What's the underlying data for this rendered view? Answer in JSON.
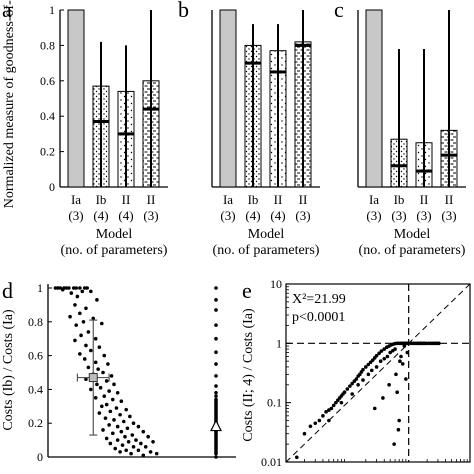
{
  "chart_data": [
    {
      "panel": "a",
      "type": "bar",
      "ylabel": "Normalized measure of goodness-of-fit",
      "ylim": [
        0,
        1
      ],
      "yticks": [
        "0",
        "0.2",
        "0.4",
        "0.6",
        "0.8",
        "1"
      ],
      "categories": [
        "Ia",
        "Ib",
        "II",
        "II"
      ],
      "params": [
        "(3)",
        "(4)",
        "(4)",
        "(3)"
      ],
      "xlabel": [
        "Model",
        "(no. of parameters)"
      ],
      "values": [
        1.0,
        0.57,
        0.54,
        0.6
      ],
      "medians": [
        null,
        0.37,
        0.3,
        0.44
      ],
      "whisker_low": [
        null,
        0.0,
        0.0,
        0.0
      ],
      "whisker_high": [
        null,
        0.82,
        0.8,
        1.0
      ],
      "patterns": [
        "gray",
        "dots",
        "sparse",
        "dashes"
      ]
    },
    {
      "panel": "b",
      "type": "bar",
      "ylim": [
        0,
        1
      ],
      "categories": [
        "Ia",
        "Ib",
        "II",
        "II"
      ],
      "params": [
        "(3)",
        "(4)",
        "(4)",
        "(3)"
      ],
      "xlabel": [
        "Model",
        "(no. of parameters)"
      ],
      "values": [
        1.0,
        0.8,
        0.77,
        0.82
      ],
      "medians": [
        null,
        0.7,
        0.65,
        0.8
      ],
      "whisker_low": [
        null,
        0.0,
        0.0,
        0.0
      ],
      "whisker_high": [
        null,
        0.92,
        0.92,
        1.0
      ],
      "patterns": [
        "gray",
        "dots",
        "sparse",
        "dashes"
      ]
    },
    {
      "panel": "c",
      "type": "bar",
      "ylim": [
        0,
        1
      ],
      "categories": [
        "Ia",
        "Ib",
        "II",
        "II"
      ],
      "params": [
        "(3)",
        "(3)",
        "(3)",
        "(3)"
      ],
      "xlabel": [
        "Model",
        "(no. of parameters)"
      ],
      "values": [
        1.0,
        0.27,
        0.25,
        0.32
      ],
      "medians": [
        null,
        0.12,
        0.09,
        0.18
      ],
      "whisker_low": [
        null,
        0.0,
        0.0,
        0.0
      ],
      "whisker_high": [
        null,
        0.78,
        0.78,
        1.0
      ],
      "patterns": [
        "gray",
        "dots",
        "sparse",
        "dashes"
      ]
    },
    {
      "panel": "d",
      "type": "scatter",
      "ylabel": "Costs (Ib) / Costs (Ia)",
      "ylim": [
        0,
        1
      ],
      "yticks": [
        "0",
        "0.2",
        "0.4",
        "0.6",
        "0.8",
        "1"
      ],
      "points": [
        [
          0.02,
          1
        ],
        [
          0.04,
          1
        ],
        [
          0.06,
          1
        ],
        [
          0.09,
          1
        ],
        [
          0.11,
          1
        ],
        [
          0.13,
          1
        ],
        [
          0.17,
          1
        ],
        [
          0.19,
          1
        ],
        [
          0.22,
          1
        ],
        [
          0.26,
          1
        ],
        [
          0.28,
          1
        ],
        [
          0.08,
          0.99
        ],
        [
          0.24,
          0.98
        ],
        [
          0.15,
          0.97
        ],
        [
          0.31,
          0.98
        ],
        [
          0.2,
          0.95
        ],
        [
          0.36,
          0.93
        ],
        [
          0.18,
          0.9
        ],
        [
          0.27,
          0.88
        ],
        [
          0.22,
          0.85
        ],
        [
          0.14,
          0.83
        ],
        [
          0.33,
          0.82
        ],
        [
          0.25,
          0.8
        ],
        [
          0.19,
          0.78
        ],
        [
          0.4,
          0.79
        ],
        [
          0.29,
          0.74
        ],
        [
          0.23,
          0.72
        ],
        [
          0.35,
          0.7
        ],
        [
          0.18,
          0.69
        ],
        [
          0.27,
          0.66
        ],
        [
          0.38,
          0.65
        ],
        [
          0.31,
          0.63
        ],
        [
          0.22,
          0.61
        ],
        [
          0.42,
          0.6
        ],
        [
          0.26,
          0.58
        ],
        [
          0.35,
          0.56
        ],
        [
          0.45,
          0.55
        ],
        [
          0.29,
          0.53
        ],
        [
          0.37,
          0.52
        ],
        [
          0.41,
          0.5
        ],
        [
          0.33,
          0.49
        ],
        [
          0.48,
          0.48
        ],
        [
          0.27,
          0.46
        ],
        [
          0.44,
          0.45
        ],
        [
          0.36,
          0.43
        ],
        [
          0.5,
          0.43
        ],
        [
          0.39,
          0.41
        ],
        [
          0.31,
          0.4
        ],
        [
          0.46,
          0.39
        ],
        [
          0.53,
          0.38
        ],
        [
          0.42,
          0.36
        ],
        [
          0.35,
          0.35
        ],
        [
          0.49,
          0.34
        ],
        [
          0.56,
          0.33
        ],
        [
          0.44,
          0.31
        ],
        [
          0.4,
          0.3
        ],
        [
          0.52,
          0.29
        ],
        [
          0.6,
          0.28
        ],
        [
          0.47,
          0.27
        ],
        [
          0.38,
          0.26
        ],
        [
          0.55,
          0.25
        ],
        [
          0.63,
          0.24
        ],
        [
          0.43,
          0.23
        ],
        [
          0.5,
          0.22
        ],
        [
          0.58,
          0.21
        ],
        [
          0.66,
          0.2
        ],
        [
          0.46,
          0.19
        ],
        [
          0.53,
          0.18
        ],
        [
          0.7,
          0.18
        ],
        [
          0.61,
          0.17
        ],
        [
          0.41,
          0.16
        ],
        [
          0.56,
          0.15
        ],
        [
          0.74,
          0.15
        ],
        [
          0.49,
          0.14
        ],
        [
          0.65,
          0.13
        ],
        [
          0.59,
          0.12
        ],
        [
          0.78,
          0.12
        ],
        [
          0.44,
          0.11
        ],
        [
          0.68,
          0.1
        ],
        [
          0.53,
          0.1
        ],
        [
          0.62,
          0.09
        ],
        [
          0.82,
          0.09
        ],
        [
          0.72,
          0.08
        ],
        [
          0.47,
          0.08
        ],
        [
          0.57,
          0.07
        ],
        [
          0.66,
          0.06
        ],
        [
          0.76,
          0.06
        ],
        [
          0.51,
          0.05
        ],
        [
          0.6,
          0.04
        ],
        [
          0.7,
          0.04
        ],
        [
          0.8,
          0.03
        ],
        [
          0.55,
          0.03
        ],
        [
          0.64,
          0.02
        ],
        [
          0.74,
          0.01
        ],
        [
          0.85,
          0.02
        ]
      ],
      "mean_point": {
        "x": 0.33,
        "y": 0.47,
        "yerr": [
          0.13,
          0.81
        ],
        "xerr": [
          0.2,
          0.46
        ]
      },
      "column_points": [
        0.0,
        0.02,
        0.03,
        0.04,
        0.05,
        0.06,
        0.07,
        0.08,
        0.09,
        0.1,
        0.11,
        0.12,
        0.13,
        0.14,
        0.15,
        0.16,
        0.17,
        0.18,
        0.19,
        0.2,
        0.21,
        0.22,
        0.23,
        0.24,
        0.25,
        0.26,
        0.27,
        0.28,
        0.29,
        0.3,
        0.31,
        0.32,
        0.33,
        0.34,
        0.36,
        0.38,
        0.42,
        0.48,
        0.55,
        0.62,
        0.7,
        0.78,
        0.87,
        0.93,
        1.0
      ],
      "column_marker": 0.18
    },
    {
      "panel": "e",
      "type": "scatter",
      "ylabel": "Costs (II; 4) / Costs (Ia)",
      "yscale": "log",
      "ylim": [
        0.01,
        10
      ],
      "yticks": [
        "10",
        "1",
        "0.1",
        "0.01"
      ],
      "annotations": [
        "X²=21.99",
        "p<0.0001"
      ],
      "points": [
        [
          0.015,
          0.012
        ],
        [
          0.02,
          0.03
        ],
        [
          0.025,
          0.04
        ],
        [
          0.03,
          0.045
        ],
        [
          0.035,
          0.05
        ],
        [
          0.04,
          0.06
        ],
        [
          0.045,
          0.07
        ],
        [
          0.05,
          0.075
        ],
        [
          0.055,
          0.08
        ],
        [
          0.06,
          0.09
        ],
        [
          0.065,
          0.1
        ],
        [
          0.07,
          0.11
        ],
        [
          0.075,
          0.12
        ],
        [
          0.08,
          0.13
        ],
        [
          0.085,
          0.14
        ],
        [
          0.09,
          0.15
        ],
        [
          0.1,
          0.17
        ],
        [
          0.11,
          0.19
        ],
        [
          0.12,
          0.21
        ],
        [
          0.13,
          0.23
        ],
        [
          0.14,
          0.25
        ],
        [
          0.15,
          0.28
        ],
        [
          0.16,
          0.3
        ],
        [
          0.17,
          0.33
        ],
        [
          0.18,
          0.36
        ],
        [
          0.2,
          0.4
        ],
        [
          0.22,
          0.44
        ],
        [
          0.24,
          0.48
        ],
        [
          0.26,
          0.52
        ],
        [
          0.28,
          0.57
        ],
        [
          0.3,
          0.62
        ],
        [
          0.33,
          0.68
        ],
        [
          0.36,
          0.74
        ],
        [
          0.4,
          0.8
        ],
        [
          0.44,
          0.86
        ],
        [
          0.48,
          0.9
        ],
        [
          0.52,
          0.94
        ],
        [
          0.56,
          0.97
        ],
        [
          0.6,
          0.99
        ],
        [
          0.65,
          1.0
        ],
        [
          0.7,
          1.0
        ],
        [
          0.75,
          1.0
        ],
        [
          0.8,
          1.0
        ],
        [
          0.85,
          1.0
        ],
        [
          0.9,
          1.0
        ],
        [
          0.95,
          1.0
        ],
        [
          1.0,
          1.0
        ],
        [
          1.1,
          1.0
        ],
        [
          1.2,
          1.0
        ],
        [
          1.3,
          1.0
        ],
        [
          1.4,
          1.0
        ],
        [
          1.5,
          1.0
        ],
        [
          1.6,
          1.0
        ],
        [
          1.7,
          1.0
        ],
        [
          1.8,
          1.0
        ],
        [
          1.9,
          1.0
        ],
        [
          2.1,
          1.0
        ],
        [
          2.3,
          1.0
        ],
        [
          2.5,
          1.0
        ],
        [
          2.7,
          1.0
        ],
        [
          2.9,
          1.0
        ],
        [
          3.1,
          1.0
        ],
        [
          0.05,
          0.05
        ],
        [
          0.08,
          0.1
        ],
        [
          0.12,
          0.14
        ],
        [
          0.15,
          0.2
        ],
        [
          0.18,
          0.24
        ],
        [
          0.22,
          0.3
        ],
        [
          0.25,
          0.35
        ],
        [
          0.3,
          0.4
        ],
        [
          0.35,
          0.5
        ],
        [
          0.4,
          0.55
        ],
        [
          0.45,
          0.6
        ],
        [
          0.5,
          0.7
        ],
        [
          0.55,
          0.75
        ],
        [
          0.6,
          0.8
        ],
        [
          0.62,
          0.3
        ],
        [
          0.65,
          0.15
        ],
        [
          0.7,
          0.05
        ],
        [
          0.75,
          0.6
        ],
        [
          0.8,
          0.45
        ],
        [
          0.85,
          0.9
        ],
        [
          0.9,
          0.25
        ],
        [
          0.95,
          0.7
        ],
        [
          0.68,
          0.035
        ],
        [
          0.58,
          0.02
        ],
        [
          0.48,
          0.2
        ],
        [
          0.38,
          0.12
        ],
        [
          0.28,
          0.08
        ],
        [
          0.72,
          0.5
        ]
      ]
    }
  ],
  "labels": {
    "a": "a",
    "b": "b",
    "c": "c",
    "d": "d",
    "e": "e"
  }
}
